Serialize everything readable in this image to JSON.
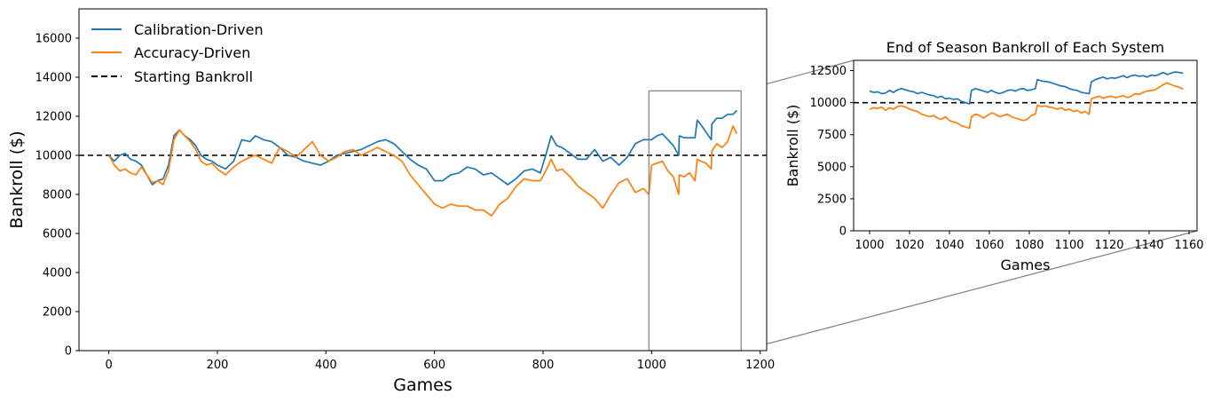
{
  "colors": {
    "calibration": "#1f77b4",
    "accuracy": "#ff7f0e",
    "baseline": "#000000",
    "zoom_box": "#808080"
  },
  "chart_data": [
    {
      "id": "main",
      "type": "line",
      "title": "",
      "xlabel": "Games",
      "ylabel": "Bankroll ($)",
      "xlim": [
        -55,
        1212
      ],
      "ylim": [
        0,
        17500
      ],
      "xticks": [
        0,
        200,
        400,
        600,
        800,
        1000,
        1200
      ],
      "yticks": [
        0,
        2000,
        4000,
        6000,
        8000,
        10000,
        12000,
        14000,
        16000
      ],
      "legend_position": "top-left",
      "legend": [
        "Calibration-Driven",
        "Accuracy-Driven",
        "Starting Bankroll"
      ],
      "baseline": {
        "name": "Starting Bankroll",
        "value": 10000,
        "style": "dashed"
      },
      "zoom_region": {
        "x": [
          995,
          1165
        ],
        "y": [
          0,
          13300
        ]
      },
      "series": [
        {
          "name": "Calibration-Driven",
          "color_key": "calibration",
          "x": [
            0,
            10,
            20,
            30,
            40,
            50,
            60,
            70,
            80,
            90,
            100,
            110,
            120,
            130,
            140,
            150,
            160,
            170,
            180,
            190,
            200,
            215,
            230,
            245,
            260,
            270,
            285,
            300,
            315,
            330,
            345,
            360,
            375,
            390,
            405,
            420,
            435,
            450,
            465,
            480,
            495,
            510,
            525,
            540,
            555,
            570,
            585,
            600,
            615,
            630,
            645,
            660,
            675,
            690,
            705,
            720,
            735,
            750,
            765,
            780,
            795,
            805,
            815,
            825,
            835,
            850,
            865,
            880,
            895,
            910,
            925,
            940,
            955,
            970,
            985,
            995,
            1000,
            1010,
            1020,
            1030,
            1040,
            1050,
            1051,
            1060,
            1070,
            1080,
            1084,
            1090,
            1100,
            1110,
            1111,
            1120,
            1130,
            1140,
            1150,
            1157
          ],
          "y": [
            10000,
            9700,
            10000,
            10100,
            9800,
            9700,
            9500,
            9000,
            8500,
            8700,
            8800,
            9500,
            11000,
            11300,
            11000,
            10800,
            10500,
            10000,
            9800,
            9700,
            9500,
            9300,
            9700,
            10800,
            10700,
            11000,
            10800,
            10700,
            10400,
            10000,
            9900,
            9700,
            9600,
            9500,
            9700,
            10000,
            10100,
            10200,
            10300,
            10500,
            10700,
            10800,
            10600,
            10200,
            9800,
            9500,
            9300,
            8700,
            8700,
            9000,
            9100,
            9400,
            9300,
            9000,
            9100,
            8800,
            8500,
            8800,
            9200,
            9300,
            9100,
            10000,
            11000,
            10500,
            10400,
            10100,
            9800,
            9800,
            10300,
            9700,
            9900,
            9500,
            9900,
            10600,
            10800,
            10800,
            10800,
            11000,
            11100,
            10800,
            10500,
            10000,
            11000,
            10900,
            10900,
            10900,
            11800,
            11600,
            11200,
            10800,
            11600,
            11900,
            11900,
            12100,
            12100,
            12300
          ]
        },
        {
          "name": "Accuracy-Driven",
          "color_key": "accuracy",
          "x": [
            0,
            10,
            20,
            30,
            40,
            50,
            60,
            70,
            80,
            90,
            100,
            110,
            120,
            130,
            140,
            150,
            160,
            170,
            180,
            190,
            200,
            215,
            230,
            245,
            260,
            270,
            285,
            300,
            315,
            330,
            345,
            360,
            375,
            390,
            405,
            420,
            435,
            450,
            465,
            480,
            495,
            510,
            525,
            540,
            555,
            570,
            585,
            600,
            615,
            630,
            645,
            660,
            675,
            690,
            705,
            720,
            735,
            750,
            765,
            780,
            795,
            805,
            815,
            825,
            835,
            850,
            865,
            880,
            895,
            910,
            925,
            940,
            955,
            970,
            985,
            995,
            1000,
            1010,
            1020,
            1030,
            1040,
            1050,
            1051,
            1060,
            1070,
            1080,
            1084,
            1090,
            1100,
            1110,
            1111,
            1120,
            1130,
            1140,
            1150,
            1157
          ],
          "y": [
            10000,
            9500,
            9200,
            9300,
            9100,
            9000,
            9400,
            9000,
            8600,
            8700,
            8500,
            9200,
            10800,
            11300,
            11000,
            10700,
            10300,
            9700,
            9500,
            9600,
            9300,
            9000,
            9400,
            9700,
            9900,
            10000,
            9800,
            9600,
            10400,
            10200,
            9900,
            10300,
            10700,
            10000,
            9700,
            9900,
            10200,
            10300,
            10000,
            10200,
            10400,
            10200,
            10000,
            9700,
            9000,
            8500,
            8000,
            7500,
            7300,
            7500,
            7400,
            7400,
            7200,
            7200,
            6900,
            7500,
            7800,
            8400,
            8800,
            8700,
            8700,
            9200,
            9800,
            9200,
            9300,
            8900,
            8400,
            8100,
            7800,
            7300,
            8000,
            8600,
            8800,
            8100,
            8300,
            8000,
            9500,
            9600,
            9700,
            9200,
            8900,
            8000,
            9000,
            8900,
            9100,
            8700,
            9800,
            9700,
            9600,
            9300,
            10200,
            10600,
            10400,
            10700,
            11500,
            11100
          ]
        }
      ]
    },
    {
      "id": "inset",
      "type": "line",
      "title": "End of Season Bankroll of Each System",
      "xlabel": "Games",
      "ylabel": "Bankroll ($)",
      "xlim": [
        992,
        1164
      ],
      "ylim": [
        0,
        13300
      ],
      "xticks": [
        1000,
        1020,
        1040,
        1060,
        1080,
        1100,
        1120,
        1140,
        1160
      ],
      "yticks": [
        0,
        2500,
        5000,
        7500,
        10000,
        12500
      ],
      "baseline": {
        "name": "Starting Bankroll",
        "value": 10000,
        "style": "dashed"
      },
      "series": [
        {
          "name": "Calibration-Driven",
          "color_key": "calibration",
          "x": [
            1000,
            1002,
            1004,
            1006,
            1008,
            1010,
            1012,
            1014,
            1016,
            1018,
            1020,
            1022,
            1024,
            1026,
            1028,
            1030,
            1032,
            1034,
            1036,
            1038,
            1040,
            1042,
            1044,
            1046,
            1048,
            1050,
            1051,
            1053,
            1055,
            1057,
            1059,
            1061,
            1063,
            1065,
            1067,
            1069,
            1071,
            1073,
            1075,
            1077,
            1079,
            1081,
            1083,
            1084,
            1086,
            1088,
            1090,
            1092,
            1094,
            1096,
            1098,
            1100,
            1102,
            1104,
            1106,
            1108,
            1110,
            1111,
            1113,
            1115,
            1117,
            1119,
            1121,
            1123,
            1125,
            1127,
            1129,
            1131,
            1133,
            1135,
            1137,
            1139,
            1141,
            1143,
            1145,
            1147,
            1149,
            1151,
            1153,
            1155,
            1157
          ],
          "y": [
            10900,
            10800,
            10850,
            10700,
            10750,
            10950,
            10800,
            11000,
            11100,
            11000,
            10900,
            10850,
            10700,
            10800,
            10700,
            10600,
            10550,
            10400,
            10500,
            10300,
            10350,
            10250,
            10300,
            10100,
            10000,
            9900,
            10950,
            11100,
            11000,
            10900,
            10800,
            10950,
            10800,
            10700,
            10800,
            10950,
            11000,
            10900,
            11050,
            11100,
            10950,
            11000,
            11100,
            11800,
            11700,
            11650,
            11600,
            11500,
            11400,
            11300,
            11250,
            11100,
            11000,
            10950,
            10800,
            10750,
            10700,
            11600,
            11800,
            11900,
            12000,
            11850,
            11950,
            11900,
            12000,
            12100,
            11950,
            12100,
            12150,
            12050,
            12100,
            12000,
            12150,
            12100,
            12200,
            12350,
            12200,
            12300,
            12400,
            12350,
            12300
          ]
        },
        {
          "name": "Accuracy-Driven",
          "color_key": "accuracy",
          "x": [
            1000,
            1002,
            1004,
            1006,
            1008,
            1010,
            1012,
            1014,
            1016,
            1018,
            1020,
            1022,
            1024,
            1026,
            1028,
            1030,
            1032,
            1034,
            1036,
            1038,
            1040,
            1042,
            1044,
            1046,
            1048,
            1050,
            1051,
            1053,
            1055,
            1057,
            1059,
            1061,
            1063,
            1065,
            1067,
            1069,
            1071,
            1073,
            1075,
            1077,
            1079,
            1081,
            1083,
            1084,
            1086,
            1088,
            1090,
            1092,
            1094,
            1096,
            1098,
            1100,
            1102,
            1104,
            1106,
            1108,
            1110,
            1111,
            1113,
            1115,
            1117,
            1119,
            1121,
            1123,
            1125,
            1127,
            1129,
            1131,
            1133,
            1135,
            1137,
            1139,
            1141,
            1143,
            1145,
            1147,
            1149,
            1151,
            1153,
            1155,
            1157
          ],
          "y": [
            9500,
            9600,
            9550,
            9650,
            9400,
            9600,
            9500,
            9700,
            9750,
            9650,
            9500,
            9400,
            9300,
            9100,
            9000,
            8900,
            9000,
            8800,
            8700,
            8900,
            8600,
            8500,
            8400,
            8200,
            8100,
            8000,
            8900,
            9100,
            9000,
            8800,
            9000,
            9200,
            9100,
            8900,
            9000,
            9100,
            8900,
            8800,
            8700,
            8600,
            8700,
            9000,
            9100,
            9800,
            9700,
            9750,
            9650,
            9600,
            9500,
            9600,
            9400,
            9500,
            9300,
            9400,
            9200,
            9300,
            9100,
            10300,
            10400,
            10500,
            10350,
            10450,
            10500,
            10400,
            10450,
            10550,
            10400,
            10500,
            10700,
            10650,
            10800,
            10900,
            10950,
            11000,
            11200,
            11400,
            11550,
            11400,
            11300,
            11200,
            11050
          ]
        }
      ]
    }
  ]
}
